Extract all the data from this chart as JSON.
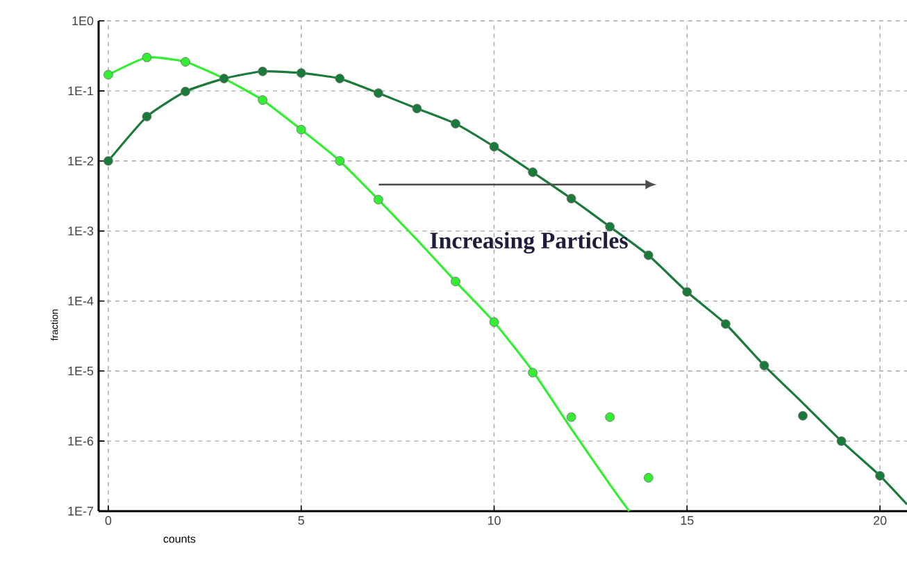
{
  "chart_data": {
    "type": "scatter",
    "xlabel": "counts",
    "ylabel": "fraction",
    "log": true,
    "grid": true,
    "marker": "circle",
    "xlim": [
      -0.25,
      20.7
    ],
    "xticks": [
      0,
      5,
      10,
      15,
      20
    ],
    "ylim": [
      1e-07,
      1
    ],
    "yticks": [
      {
        "value": 1,
        "label": "1E0"
      },
      {
        "value": 0.1,
        "label": "1E-1"
      },
      {
        "value": 0.01,
        "label": "1E-2"
      },
      {
        "value": 0.001,
        "label": "1E-3"
      },
      {
        "value": 0.0001,
        "label": "1E-4"
      },
      {
        "value": 1e-05,
        "label": "1E-5"
      },
      {
        "value": 1e-06,
        "label": "1E-6"
      },
      {
        "value": 1e-07,
        "label": "1E-7"
      }
    ],
    "annotations": [
      "Increasing Particles"
    ],
    "series": [
      {
        "type": "line",
        "marker": "none",
        "color": "#33ee33",
        "x": [
          0,
          1,
          2,
          3,
          4,
          5,
          6,
          7,
          8,
          9,
          10,
          11,
          12,
          13,
          13.5
        ],
        "values": [
          0.17,
          0.3,
          0.26,
          0.15,
          0.074,
          0.028,
          0.01,
          0.0028,
          0.00075,
          0.00019,
          5e-05,
          1e-05,
          1.5e-06,
          2.4e-07,
          1e-07
        ]
      },
      {
        "type": "line",
        "marker": "none",
        "color": "#1a7a3a",
        "x": [
          0,
          1,
          2,
          3,
          4,
          5,
          6,
          7,
          8,
          9,
          10,
          11,
          12,
          13,
          14,
          15,
          16,
          17,
          18,
          19,
          20,
          20.7
        ],
        "values": [
          0.01,
          0.043,
          0.098,
          0.15,
          0.19,
          0.18,
          0.15,
          0.093,
          0.056,
          0.034,
          0.016,
          0.0069,
          0.0029,
          0.00115,
          0.00045,
          0.000135,
          4.7e-05,
          1.2e-05,
          3.5e-06,
          1e-06,
          3.2e-07,
          1.25e-07
        ]
      },
      {
        "color": "#33ee33",
        "x": [
          0,
          1,
          2,
          3,
          4,
          5,
          6,
          7,
          8,
          9,
          10,
          11,
          12,
          13,
          14
        ],
        "values": [
          0.17,
          0.3,
          0.26,
          null,
          0.074,
          0.028,
          0.01,
          0.0028,
          null,
          0.00019,
          5e-05,
          9.5e-06,
          2.2e-06,
          2.2e-06,
          3e-07
        ]
      },
      {
        "color": "#1a7a3a",
        "x": [
          0,
          1,
          2,
          3,
          4,
          5,
          6,
          7,
          8,
          9,
          10,
          11,
          12,
          13,
          14,
          15,
          16,
          17,
          18,
          19,
          20
        ],
        "values": [
          0.01,
          0.043,
          0.098,
          0.15,
          0.19,
          0.18,
          0.15,
          0.093,
          0.056,
          0.034,
          0.016,
          0.0069,
          0.0029,
          0.00115,
          0.00045,
          0.000135,
          4.7e-05,
          1.2e-05,
          2.3e-06,
          1e-06,
          3.2e-07
        ]
      }
    ]
  }
}
